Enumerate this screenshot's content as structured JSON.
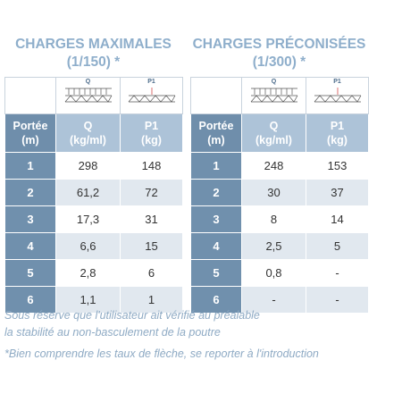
{
  "tables": [
    {
      "title": "CHARGES MAXIMALES",
      "subtitle": "(1/150) *",
      "icon_labels": [
        "Q",
        "P1"
      ],
      "header": [
        [
          "Portée",
          "(m)"
        ],
        [
          "Q",
          "(kg/ml)"
        ],
        [
          "P1",
          "(kg)"
        ]
      ],
      "rows": [
        [
          "1",
          "298",
          "148"
        ],
        [
          "2",
          "61,2",
          "72"
        ],
        [
          "3",
          "17,3",
          "31"
        ],
        [
          "4",
          "6,6",
          "15"
        ],
        [
          "5",
          "2,8",
          "6"
        ],
        [
          "6",
          "1,1",
          "1"
        ]
      ]
    },
    {
      "title": "CHARGES PRÉCONISÉES",
      "subtitle": "(1/300) *",
      "icon_labels": [
        "Q",
        "P1"
      ],
      "header": [
        [
          "Portée",
          "(m)"
        ],
        [
          "Q",
          "(kg/ml)"
        ],
        [
          "P1",
          "(kg)"
        ]
      ],
      "rows": [
        [
          "1",
          "248",
          "153"
        ],
        [
          "2",
          "30",
          "37"
        ],
        [
          "3",
          "8",
          "14"
        ],
        [
          "4",
          "2,5",
          "5"
        ],
        [
          "5",
          "0,8",
          "-"
        ],
        [
          "6",
          "-",
          "-"
        ]
      ]
    }
  ],
  "notes": [
    "Sous réserve que l'utilisateur ait vérifié au préalable",
    "la stabilité au non-basculement de la poutre",
    "*Bien comprendre les taux de flèche, se reporter à l'introduction"
  ]
}
